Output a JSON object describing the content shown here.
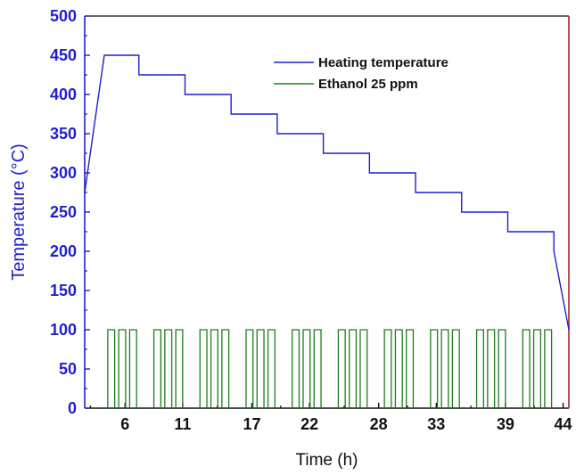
{
  "chart_data": {
    "type": "line",
    "title": "",
    "xlabel": "Time (h)",
    "ylabel": "Temperature (°C)",
    "xlim": [
      2.5,
      44.5
    ],
    "ylim": [
      0,
      500
    ],
    "x_ticks": [
      "6",
      "11",
      "17",
      "22",
      "28",
      "33",
      "39",
      "44"
    ],
    "x_tick_values": [
      6,
      11,
      17,
      22,
      28,
      33,
      39,
      44
    ],
    "y_ticks": [
      0,
      50,
      100,
      150,
      200,
      250,
      300,
      350,
      400,
      450,
      500
    ],
    "legend_position": "top-right",
    "grid": false,
    "colors": {
      "axis_left": "#1f1fd1",
      "axis_right": "#a0262a",
      "frame": "#111111"
    },
    "series": [
      {
        "name": "Heating temperature",
        "color": "#1f1fd1",
        "x": [
          2.5,
          4.2,
          7.2,
          7.2,
          11.2,
          11.2,
          15.2,
          15.2,
          19.2,
          19.2,
          23.2,
          23.2,
          27.2,
          27.2,
          31.2,
          31.2,
          35.2,
          35.2,
          39.2,
          39.2,
          43.2,
          43.2,
          44.5
        ],
        "y": [
          275,
          450,
          450,
          425,
          425,
          400,
          400,
          375,
          375,
          350,
          350,
          325,
          325,
          300,
          300,
          275,
          275,
          250,
          250,
          225,
          225,
          200,
          100
        ]
      },
      {
        "name": "Ethanol 25 ppm",
        "color": "#1e7d1e",
        "pulse_level": [
          0,
          100
        ],
        "pulse_groups_start_x": [
          4.5,
          8.5,
          12.5,
          16.5,
          20.5,
          24.5,
          28.5,
          32.5,
          36.5,
          40.5
        ],
        "pulses_per_group": 3,
        "pulse_on_width_h": 0.6,
        "pulse_off_width_h": 0.35
      }
    ]
  }
}
